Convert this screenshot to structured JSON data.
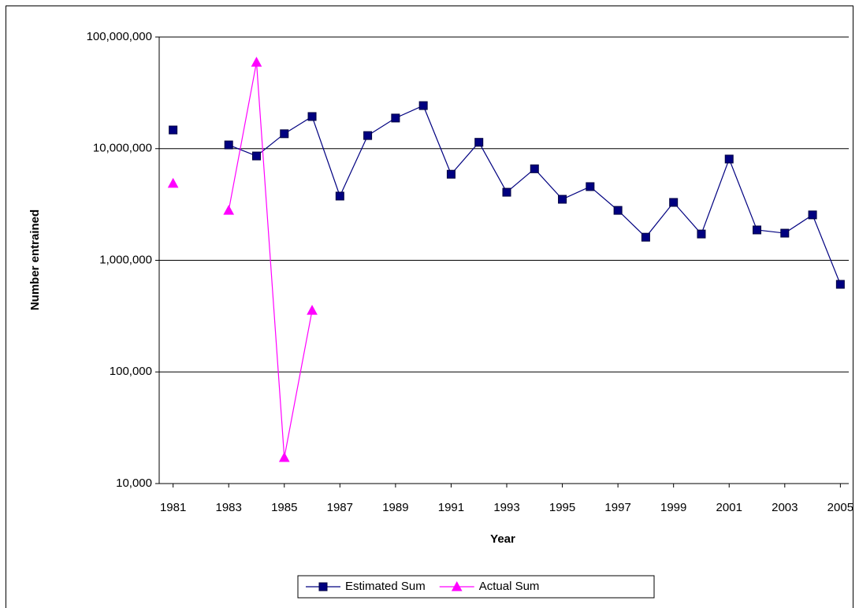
{
  "chart_data": {
    "type": "line",
    "y_label": "Number entrained",
    "x_label": "Year",
    "log_scale": true,
    "grid": true,
    "legend": "bottom",
    "x": [
      1981,
      1982,
      1983,
      1984,
      1985,
      1986,
      1987,
      1988,
      1989,
      1990,
      1991,
      1992,
      1993,
      1994,
      1995,
      1996,
      1997,
      1998,
      1999,
      2000,
      2001,
      2002,
      2003,
      2004,
      2005
    ],
    "xlim": [
      1980.5,
      2005.5
    ],
    "xticks": [
      1981,
      1983,
      1985,
      1987,
      1989,
      1991,
      1993,
      1995,
      1997,
      1999,
      2001,
      2003,
      2005
    ],
    "ylim": [
      10000,
      100000000
    ],
    "yticks": [
      {
        "value": 10000,
        "label": "10,000"
      },
      {
        "value": 100000,
        "label": "100,000"
      },
      {
        "value": 1000000,
        "label": "1,000,000"
      },
      {
        "value": 10000000,
        "label": "10,000,000"
      },
      {
        "value": 100000000,
        "label": "100,000,000"
      }
    ],
    "series": [
      {
        "name": "Estimated Sum",
        "color": "#000080",
        "marker": "square",
        "values": [
          14700000,
          null,
          10800000,
          8600000,
          13600000,
          19400000,
          3760000,
          13100000,
          18800000,
          24300000,
          5900000,
          11400000,
          4070000,
          6600000,
          3520000,
          4570000,
          2800000,
          1610000,
          3300000,
          1720000,
          8070000,
          1870000,
          1750000,
          2550000,
          609000
        ]
      },
      {
        "name": "Actual Sum",
        "color": "#ff00ff",
        "marker": "triangle",
        "values": [
          4880000,
          null,
          2800000,
          59400000,
          17100,
          356000,
          null,
          null,
          null,
          null,
          null,
          null,
          null,
          null,
          null,
          null,
          null,
          null,
          null,
          null,
          null,
          null,
          null,
          null,
          null
        ]
      }
    ]
  }
}
